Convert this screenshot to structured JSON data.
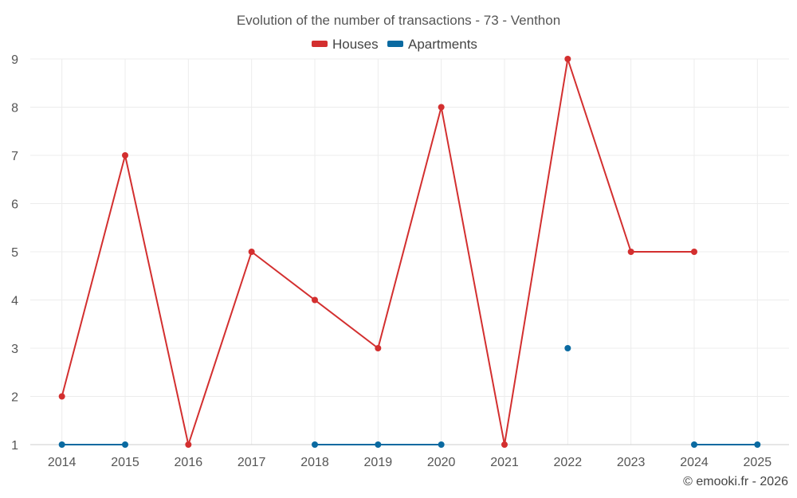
{
  "chart_data": {
    "type": "line",
    "title": "Evolution of the number of transactions - 73 - Venthon",
    "categories": [
      "2014",
      "2015",
      "2016",
      "2017",
      "2018",
      "2019",
      "2020",
      "2021",
      "2022",
      "2023",
      "2024",
      "2025"
    ],
    "ylim": [
      1,
      9
    ],
    "yticks": [
      1,
      2,
      3,
      4,
      5,
      6,
      7,
      8,
      9
    ],
    "grid": true,
    "legend_position": "top-center",
    "series": [
      {
        "name": "Houses",
        "color": "#d32f2f",
        "values": [
          2,
          7,
          1,
          5,
          4,
          3,
          8,
          1,
          9,
          5,
          5,
          null
        ]
      },
      {
        "name": "Apartments",
        "color": "#0a6aa1",
        "values": [
          1,
          1,
          null,
          null,
          1,
          1,
          1,
          null,
          3,
          null,
          1,
          1
        ]
      }
    ]
  },
  "credit": "© emooki.fr - 2026"
}
